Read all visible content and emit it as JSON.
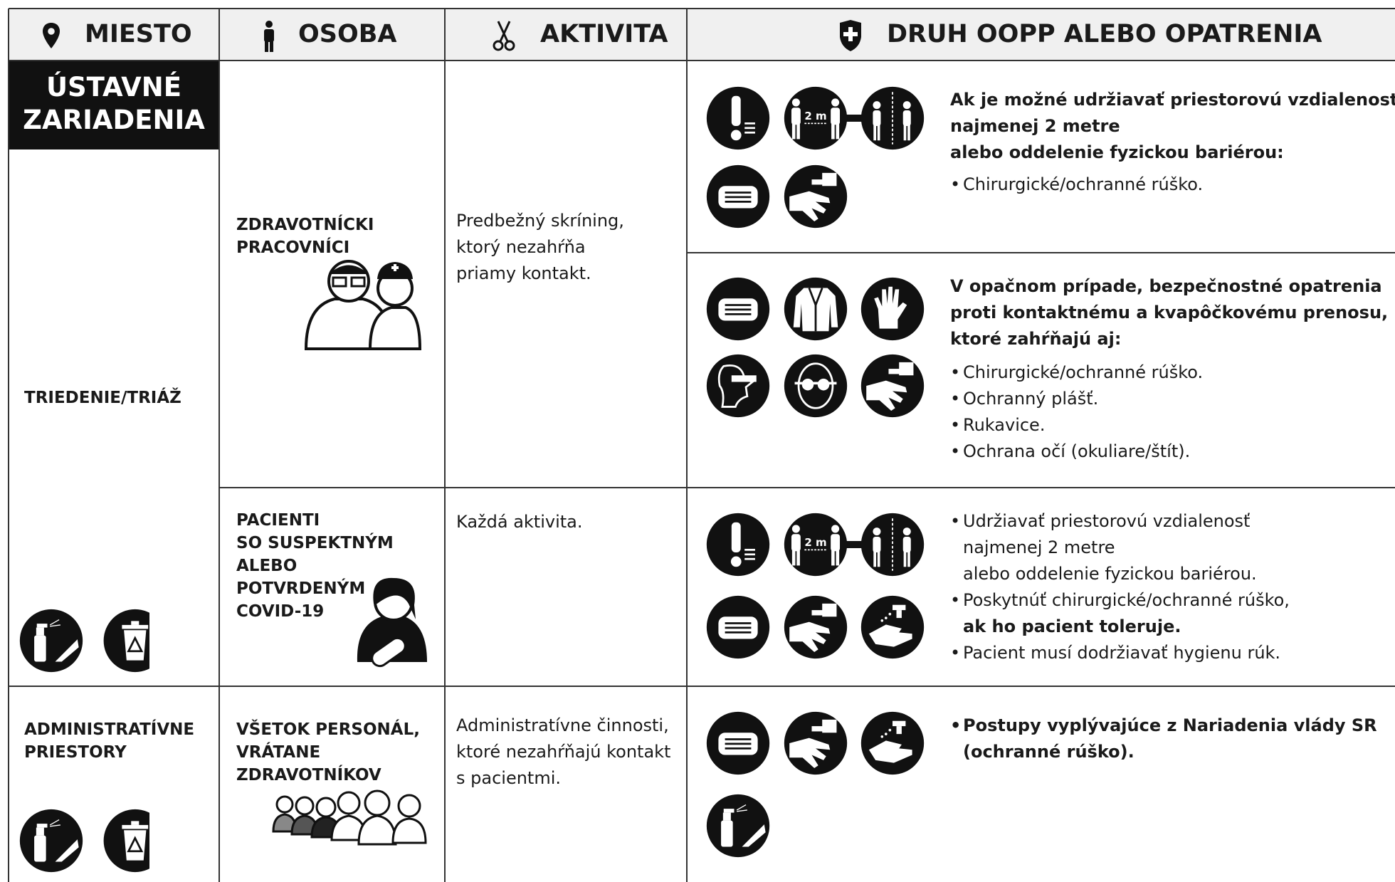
{
  "header": {
    "columns": [
      "MIESTO",
      "OSOBA",
      "AKTIVITA",
      "DRUH OOPP ALEBO OPATRENIA"
    ]
  },
  "section": [
    "ÚSTAVNÉ",
    "ZARIADENIA"
  ],
  "icon_text": "2 m",
  "rows": [
    {
      "place": "TRIEDENIE/TRIÁŽ",
      "groups": [
        {
          "person": [
            "ZDRAVOTNÍCKI",
            "PRACOVNÍCI"
          ],
          "activity": [
            "Predbežný skríning,",
            "ktorý nezahŕňa",
            "priamy kontakt."
          ],
          "measures": [
            {
              "heading": [
                "Ak je možné udržiavať priestorovú vzdialenosť",
                "najmenej 2 metre",
                "alebo oddelenie fyzickou bariérou:"
              ],
              "bullets": [
                "Chirurgické/ochranné rúško."
              ]
            },
            {
              "heading": [
                "V opačnom prípade, bezpečnostné opatrenia",
                "proti kontaktnému a kvapôčkovému prenosu,",
                "ktoré zahŕňajú aj:"
              ],
              "bullets": [
                "Chirurgické/ochranné rúško.",
                "Ochranný plášť.",
                "Rukavice.",
                "Ochrana očí (okuliare/štít)."
              ]
            }
          ]
        },
        {
          "person": [
            "PACIENTI",
            "SO SUSPEKTNÝM",
            "ALEBO",
            "POTVRDENÝM",
            "COVID-19"
          ],
          "activity": [
            "Každá aktivita."
          ],
          "measures": [
            {
              "bullets": [
                [
                  "Udržiavať priestorovú vzdialenosť",
                  "najmenej 2 metre",
                  "alebo oddelenie fyzickou bariérou."
                ],
                [
                  "Poskytnúť chirurgické/ochranné rúško,",
                  "ak ho pacient toleruje."
                ],
                [
                  "Pacient musí dodržiavať hygienu rúk."
                ]
              ]
            }
          ]
        }
      ]
    },
    {
      "place": [
        "ADMINISTRATÍVNE",
        "PRIESTORY"
      ],
      "groups": [
        {
          "person": [
            "VŠETOK PERSONÁL,",
            "VRÁTANE",
            "ZDRAVOTNÍKOV"
          ],
          "activity": [
            "Administratívne činnosti,",
            "ktoré nezahŕňajú kontakt",
            "s pacientmi."
          ],
          "measures": [
            {
              "bullets": [
                [
                  "Postupy vyplývajúce z Nariadenia vlády SR",
                  "(ochranné rúško)."
                ]
              ]
            }
          ]
        }
      ]
    }
  ]
}
